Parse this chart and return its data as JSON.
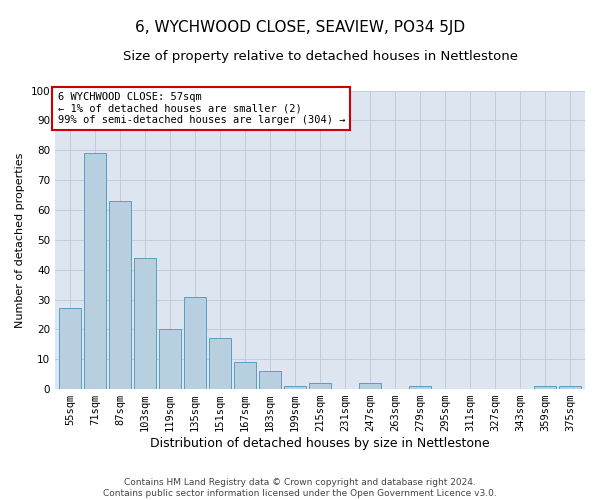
{
  "title": "6, WYCHWOOD CLOSE, SEAVIEW, PO34 5JD",
  "subtitle": "Size of property relative to detached houses in Nettlestone",
  "xlabel": "Distribution of detached houses by size in Nettlestone",
  "ylabel": "Number of detached properties",
  "categories": [
    "55sqm",
    "71sqm",
    "87sqm",
    "103sqm",
    "119sqm",
    "135sqm",
    "151sqm",
    "167sqm",
    "183sqm",
    "199sqm",
    "215sqm",
    "231sqm",
    "247sqm",
    "263sqm",
    "279sqm",
    "295sqm",
    "311sqm",
    "327sqm",
    "343sqm",
    "359sqm",
    "375sqm"
  ],
  "values": [
    27,
    79,
    63,
    44,
    20,
    31,
    17,
    9,
    6,
    1,
    2,
    0,
    2,
    0,
    1,
    0,
    0,
    0,
    0,
    1,
    1
  ],
  "bar_color": "#b8cfe0",
  "bar_edge_color": "#5a9ec0",
  "annotation_text": "6 WYCHWOOD CLOSE: 57sqm\n← 1% of detached houses are smaller (2)\n99% of semi-detached houses are larger (304) →",
  "annotation_box_color": "#ffffff",
  "annotation_box_edge_color": "#cc0000",
  "ylim": [
    0,
    100
  ],
  "yticks": [
    0,
    10,
    20,
    30,
    40,
    50,
    60,
    70,
    80,
    90,
    100
  ],
  "grid_color": "#c0c8d8",
  "background_color": "#dde6f0",
  "footnote": "Contains HM Land Registry data © Crown copyright and database right 2024.\nContains public sector information licensed under the Open Government Licence v3.0.",
  "title_fontsize": 11,
  "subtitle_fontsize": 9.5,
  "xlabel_fontsize": 9,
  "ylabel_fontsize": 8,
  "tick_fontsize": 7.5,
  "annotation_fontsize": 7.5,
  "footnote_fontsize": 6.5
}
